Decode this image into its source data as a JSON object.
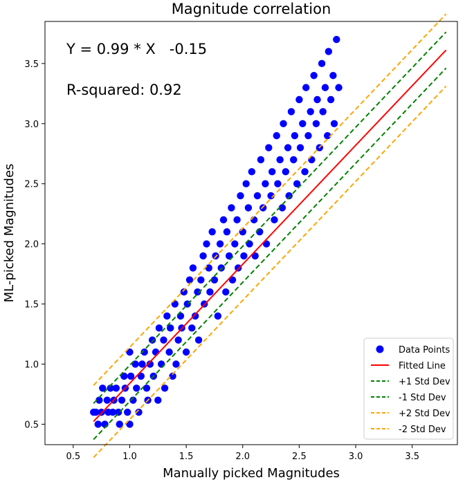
{
  "chart_data": {
    "type": "scatter",
    "title": "Magnitude correlation",
    "xlabel": "Manually picked Magnitudes",
    "ylabel": "ML-picked Magnitudes",
    "xlim": [
      0.25,
      3.9
    ],
    "ylim": [
      0.33,
      3.85
    ],
    "xticks": [
      0.5,
      1.0,
      1.5,
      2.0,
      2.5,
      3.0,
      3.5
    ],
    "xtick_labels": [
      "0.5",
      "1.0",
      "1.5",
      "2.0",
      "2.5",
      "3.0",
      "3.5"
    ],
    "yticks": [
      0.5,
      1.0,
      1.5,
      2.0,
      2.5,
      3.0,
      3.5
    ],
    "ytick_labels": [
      "0.5",
      "1.0",
      "1.5",
      "2.0",
      "2.5",
      "3.0",
      "3.5"
    ],
    "grid": false,
    "legend_position": "bottom-right",
    "annotations": {
      "equation": "Y = 0.99 * X   -0.15",
      "r_squared": "R-squared: 0.92"
    },
    "fit": {
      "slope": 0.99,
      "intercept": -0.15,
      "std_dev": 0.15,
      "x_range": [
        0.68,
        3.8
      ]
    },
    "series": [
      {
        "name": "Data Points",
        "type": "scatter",
        "color": "#0000ff"
      },
      {
        "name": "Fitted Line",
        "type": "line",
        "color": "#ff0000",
        "offset_std": 0
      },
      {
        "name": "+1 Std Dev",
        "type": "line",
        "color": "#008000",
        "dash": true,
        "offset_std": 1
      },
      {
        "name": "-1 Std Dev",
        "type": "line",
        "color": "#008000",
        "dash": true,
        "offset_std": -1
      },
      {
        "name": "+2 Std Dev",
        "type": "line",
        "color": "#ffa500",
        "dash": true,
        "offset_std": 2
      },
      {
        "name": "-2 Std Dev",
        "type": "line",
        "color": "#ffa500",
        "dash": true,
        "offset_std": -2
      }
    ],
    "points": [
      [
        0.68,
        0.6
      ],
      [
        0.7,
        0.6
      ],
      [
        0.72,
        0.5
      ],
      [
        0.73,
        0.7
      ],
      [
        0.75,
        0.6
      ],
      [
        0.76,
        0.8
      ],
      [
        0.78,
        0.5
      ],
      [
        0.8,
        0.7
      ],
      [
        0.81,
        0.6
      ],
      [
        0.83,
        0.8
      ],
      [
        0.85,
        0.6
      ],
      [
        0.86,
        0.7
      ],
      [
        0.88,
        0.8
      ],
      [
        0.9,
        0.6
      ],
      [
        0.91,
        0.5
      ],
      [
        0.93,
        0.7
      ],
      [
        0.95,
        0.9
      ],
      [
        0.96,
        0.8
      ],
      [
        0.98,
        0.6
      ],
      [
        1.0,
        1.1
      ],
      [
        1.0,
        0.5
      ],
      [
        1.01,
        0.9
      ],
      [
        1.03,
        0.7
      ],
      [
        1.05,
        1.0
      ],
      [
        1.06,
        0.8
      ],
      [
        1.08,
        0.6
      ],
      [
        1.1,
        0.9
      ],
      [
        1.11,
        1.0
      ],
      [
        1.13,
        1.1
      ],
      [
        1.15,
        0.8
      ],
      [
        1.16,
        0.7
      ],
      [
        1.18,
        1.0
      ],
      [
        1.2,
        1.2
      ],
      [
        1.21,
        0.9
      ],
      [
        1.23,
        1.1
      ],
      [
        1.25,
        0.7
      ],
      [
        1.26,
        1.3
      ],
      [
        1.28,
        1.0
      ],
      [
        1.3,
        1.2
      ],
      [
        1.31,
        0.8
      ],
      [
        1.33,
        1.4
      ],
      [
        1.35,
        1.1
      ],
      [
        1.36,
        1.3
      ],
      [
        1.38,
        0.9
      ],
      [
        1.4,
        1.5
      ],
      [
        1.41,
        1.0
      ],
      [
        1.43,
        1.2
      ],
      [
        1.45,
        1.4
      ],
      [
        1.46,
        1.3
      ],
      [
        1.48,
        1.6
      ],
      [
        1.5,
        1.1
      ],
      [
        1.51,
        1.5
      ],
      [
        1.53,
        1.7
      ],
      [
        1.55,
        1.3
      ],
      [
        1.56,
        1.8
      ],
      [
        1.58,
        1.4
      ],
      [
        1.6,
        1.6
      ],
      [
        1.61,
        1.2
      ],
      [
        1.63,
        1.7
      ],
      [
        1.65,
        1.9
      ],
      [
        1.66,
        1.5
      ],
      [
        1.68,
        2.0
      ],
      [
        1.7,
        1.8
      ],
      [
        1.71,
        1.6
      ],
      [
        1.73,
        2.1
      ],
      [
        1.75,
        1.7
      ],
      [
        1.76,
        1.9
      ],
      [
        1.78,
        1.4
      ],
      [
        1.8,
        2.0
      ],
      [
        1.81,
        1.8
      ],
      [
        1.83,
        2.2
      ],
      [
        1.85,
        1.6
      ],
      [
        1.86,
        2.1
      ],
      [
        1.88,
        1.9
      ],
      [
        1.9,
        2.3
      ],
      [
        1.91,
        1.7
      ],
      [
        1.93,
        2.0
      ],
      [
        1.95,
        2.2
      ],
      [
        1.96,
        1.8
      ],
      [
        1.98,
        2.4
      ],
      [
        2.0,
        2.1
      ],
      [
        2.01,
        1.9
      ],
      [
        2.03,
        2.5
      ],
      [
        2.05,
        2.3
      ],
      [
        2.06,
        2.0
      ],
      [
        2.08,
        2.6
      ],
      [
        2.1,
        2.2
      ],
      [
        2.11,
        1.9
      ],
      [
        2.13,
        2.4
      ],
      [
        2.15,
        2.1
      ],
      [
        2.16,
        2.7
      ],
      [
        2.18,
        2.3
      ],
      [
        2.2,
        2.5
      ],
      [
        2.21,
        2.0
      ],
      [
        2.23,
        2.8
      ],
      [
        2.25,
        2.4
      ],
      [
        2.26,
        2.6
      ],
      [
        2.28,
        2.2
      ],
      [
        2.3,
        2.9
      ],
      [
        2.31,
        2.5
      ],
      [
        2.33,
        2.7
      ],
      [
        2.35,
        2.3
      ],
      [
        2.36,
        3.0
      ],
      [
        2.38,
        2.6
      ],
      [
        2.4,
        2.8
      ],
      [
        2.41,
        2.4
      ],
      [
        2.43,
        3.1
      ],
      [
        2.45,
        2.7
      ],
      [
        2.46,
        2.9
      ],
      [
        2.48,
        2.5
      ],
      [
        2.5,
        3.2
      ],
      [
        2.51,
        2.8
      ],
      [
        2.53,
        3.0
      ],
      [
        2.55,
        2.6
      ],
      [
        2.56,
        3.3
      ],
      [
        2.58,
        2.9
      ],
      [
        2.6,
        3.1
      ],
      [
        2.61,
        2.7
      ],
      [
        2.63,
        3.4
      ],
      [
        2.65,
        3.0
      ],
      [
        2.66,
        3.2
      ],
      [
        2.68,
        2.8
      ],
      [
        2.7,
        3.5
      ],
      [
        2.71,
        3.1
      ],
      [
        2.73,
        3.3
      ],
      [
        2.75,
        2.9
      ],
      [
        2.76,
        3.6
      ],
      [
        2.78,
        3.2
      ],
      [
        2.8,
        3.4
      ],
      [
        2.81,
        3.0
      ],
      [
        2.83,
        3.7
      ],
      [
        2.85,
        3.3
      ]
    ]
  }
}
